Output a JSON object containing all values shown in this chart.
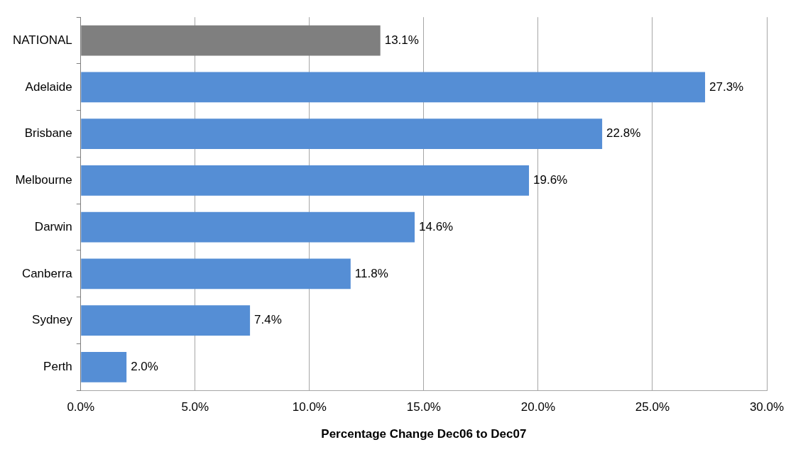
{
  "chart_data": {
    "type": "bar",
    "orientation": "horizontal",
    "xlabel": "Percentage Change Dec06 to Dec07",
    "categories": [
      "NATIONAL",
      "Adelaide",
      "Brisbane",
      "Melbourne",
      "Darwin",
      "Canberra",
      "Sydney",
      "Perth"
    ],
    "values": [
      13.1,
      27.3,
      22.8,
      19.6,
      14.6,
      11.8,
      7.4,
      2.0
    ],
    "colors": [
      "#7f7f7f",
      "#558ed5",
      "#558ed5",
      "#558ed5",
      "#558ed5",
      "#558ed5",
      "#558ed5",
      "#558ed5"
    ],
    "value_labels": [
      "13.1%",
      "27.3%",
      "22.8%",
      "19.6%",
      "14.6%",
      "11.8%",
      "7.4%",
      "2.0%"
    ],
    "xlim": [
      0,
      30
    ],
    "xticks": [
      {
        "value": 0,
        "label": "0.0%"
      },
      {
        "value": 5,
        "label": "5.0%"
      },
      {
        "value": 10,
        "label": "10.0%"
      },
      {
        "value": 15,
        "label": "15.0%"
      },
      {
        "value": 20,
        "label": "20.0%"
      },
      {
        "value": 25,
        "label": "25.0%"
      },
      {
        "value": 30,
        "label": "30.0%"
      }
    ],
    "grid": "x",
    "legend": false
  }
}
